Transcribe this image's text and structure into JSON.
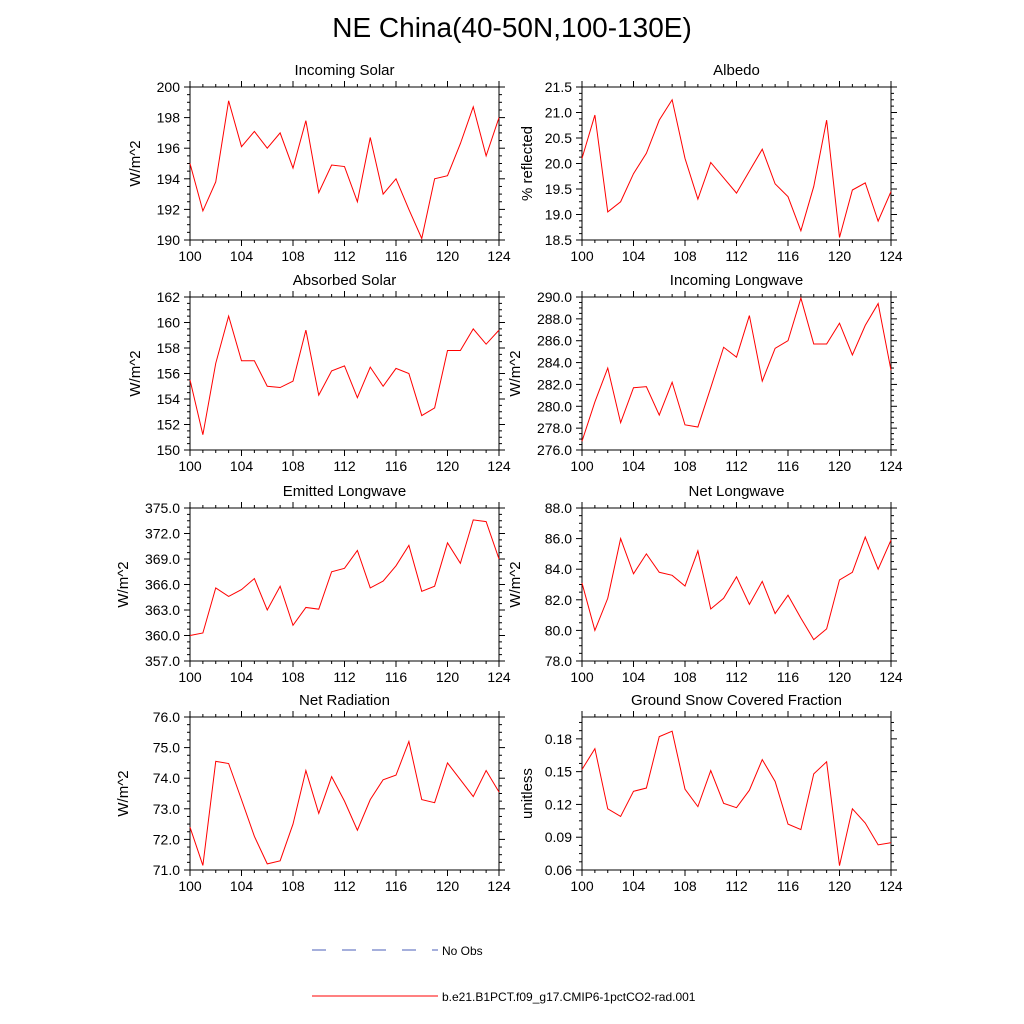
{
  "figure": {
    "title": "NE China(40-50N,100-130E)"
  },
  "legend": {
    "items": [
      {
        "label": "No Obs",
        "color": "#4b5fb8",
        "style": "dashed"
      },
      {
        "label": "b.e21.B1PCT.f09_g17.CMIP6-1pctCO2-rad.001",
        "color": "#ff0000",
        "style": "solid"
      }
    ]
  },
  "chart_data": [
    {
      "type": "line",
      "title": "Incoming Solar",
      "xlabel": "",
      "ylabel": "W/m^2",
      "xlim": [
        100,
        124
      ],
      "ylim": [
        190,
        200
      ],
      "xticks": [
        100,
        104,
        108,
        112,
        116,
        120,
        124
      ],
      "yticks": [
        190,
        192,
        194,
        196,
        198,
        200
      ],
      "ytick_labels": [
        "190",
        "192",
        "194",
        "196",
        "198",
        "200"
      ],
      "x": [
        100,
        101,
        102,
        103,
        104,
        105,
        106,
        107,
        108,
        109,
        110,
        111,
        112,
        113,
        114,
        115,
        116,
        117,
        118,
        119,
        120,
        121,
        122,
        123,
        124
      ],
      "series": [
        {
          "name": "b.e21.B1PCT.f09_g17.CMIP6-1pctCO2-rad.001",
          "color": "#ff0000",
          "values": [
            195.0,
            191.9,
            193.8,
            199.1,
            196.1,
            197.1,
            196.0,
            197.0,
            194.7,
            197.8,
            193.1,
            194.9,
            194.8,
            192.5,
            196.7,
            193.0,
            194.0,
            192.0,
            190.1,
            194.0,
            194.2,
            196.3,
            198.7,
            195.5,
            198.0
          ]
        }
      ]
    },
    {
      "type": "line",
      "title": "Albedo",
      "xlabel": "",
      "ylabel": "% reflected",
      "xlim": [
        100,
        124
      ],
      "ylim": [
        18.5,
        21.5
      ],
      "xticks": [
        100,
        104,
        108,
        112,
        116,
        120,
        124
      ],
      "yticks": [
        18.5,
        19.0,
        19.5,
        20.0,
        20.5,
        21.0,
        21.5
      ],
      "ytick_labels": [
        "18.5",
        "19.0",
        "19.5",
        "20.0",
        "20.5",
        "21.0",
        "21.5"
      ],
      "x": [
        100,
        101,
        102,
        103,
        104,
        105,
        106,
        107,
        108,
        109,
        110,
        111,
        112,
        113,
        114,
        115,
        116,
        117,
        118,
        119,
        120,
        121,
        122,
        123,
        124
      ],
      "series": [
        {
          "name": "b.e21.B1PCT.f09_g17.CMIP6-1pctCO2-rad.001",
          "color": "#ff0000",
          "values": [
            20.1,
            20.95,
            19.05,
            19.25,
            19.8,
            20.2,
            20.85,
            21.25,
            20.1,
            19.3,
            20.02,
            19.72,
            19.42,
            19.85,
            20.28,
            19.6,
            19.35,
            18.68,
            19.55,
            20.85,
            18.55,
            19.48,
            19.62,
            18.87,
            19.45
          ]
        }
      ]
    },
    {
      "type": "line",
      "title": "Absorbed Solar",
      "xlabel": "",
      "ylabel": "W/m^2",
      "xlim": [
        100,
        124
      ],
      "ylim": [
        150,
        162
      ],
      "xticks": [
        100,
        104,
        108,
        112,
        116,
        120,
        124
      ],
      "yticks": [
        150,
        152,
        154,
        156,
        158,
        160,
        162
      ],
      "ytick_labels": [
        "150",
        "152",
        "154",
        "156",
        "158",
        "160",
        "162"
      ],
      "x": [
        100,
        101,
        102,
        103,
        104,
        105,
        106,
        107,
        108,
        109,
        110,
        111,
        112,
        113,
        114,
        115,
        116,
        117,
        118,
        119,
        120,
        121,
        122,
        123,
        124
      ],
      "series": [
        {
          "name": "b.e21.B1PCT.f09_g17.CMIP6-1pctCO2-rad.001",
          "color": "#ff0000",
          "values": [
            155.5,
            151.2,
            156.8,
            160.5,
            157.0,
            157.0,
            155.0,
            154.9,
            155.4,
            159.4,
            154.3,
            156.2,
            156.6,
            154.1,
            156.5,
            155.0,
            156.4,
            156.0,
            152.7,
            153.3,
            157.8,
            157.8,
            159.5,
            158.3,
            159.4
          ]
        }
      ]
    },
    {
      "type": "line",
      "title": "Incoming Longwave",
      "xlabel": "",
      "ylabel": "W/m^2",
      "xlim": [
        100,
        124
      ],
      "ylim": [
        276,
        290
      ],
      "xticks": [
        100,
        104,
        108,
        112,
        116,
        120,
        124
      ],
      "yticks": [
        276,
        278,
        280,
        282,
        284,
        286,
        288,
        290
      ],
      "ytick_labels": [
        "276.0",
        "278.0",
        "280.0",
        "282.0",
        "284.0",
        "286.0",
        "288.0",
        "290.0"
      ],
      "x": [
        100,
        101,
        102,
        103,
        104,
        105,
        106,
        107,
        108,
        109,
        110,
        111,
        112,
        113,
        114,
        115,
        116,
        117,
        118,
        119,
        120,
        121,
        122,
        123,
        124
      ],
      "series": [
        {
          "name": "b.e21.B1PCT.f09_g17.CMIP6-1pctCO2-rad.001",
          "color": "#ff0000",
          "values": [
            276.8,
            280.4,
            283.5,
            278.5,
            281.7,
            281.8,
            279.2,
            282.2,
            278.3,
            278.1,
            281.7,
            285.4,
            284.5,
            288.3,
            282.3,
            285.3,
            286.0,
            289.9,
            285.7,
            285.7,
            287.6,
            284.7,
            287.4,
            289.4,
            283.3
          ]
        }
      ]
    },
    {
      "type": "line",
      "title": "Emitted Longwave",
      "xlabel": "",
      "ylabel": "W/m^2",
      "xlim": [
        100,
        124
      ],
      "ylim": [
        357,
        375
      ],
      "xticks": [
        100,
        104,
        108,
        112,
        116,
        120,
        124
      ],
      "yticks": [
        357,
        360,
        363,
        366,
        369,
        372,
        375
      ],
      "ytick_labels": [
        "357.0",
        "360.0",
        "363.0",
        "366.0",
        "369.0",
        "372.0",
        "375.0"
      ],
      "x": [
        100,
        101,
        102,
        103,
        104,
        105,
        106,
        107,
        108,
        109,
        110,
        111,
        112,
        113,
        114,
        115,
        116,
        117,
        118,
        119,
        120,
        121,
        122,
        123,
        124
      ],
      "series": [
        {
          "name": "b.e21.B1PCT.f09_g17.CMIP6-1pctCO2-rad.001",
          "color": "#ff0000",
          "values": [
            360.0,
            360.3,
            365.6,
            364.6,
            365.4,
            366.7,
            363.0,
            365.8,
            361.2,
            363.3,
            363.1,
            367.5,
            367.9,
            370.0,
            365.6,
            366.4,
            368.2,
            370.6,
            365.2,
            365.8,
            370.9,
            368.5,
            373.6,
            373.4,
            369.0
          ]
        }
      ]
    },
    {
      "type": "line",
      "title": "Net Longwave",
      "xlabel": "",
      "ylabel": "W/m^2",
      "xlim": [
        100,
        124
      ],
      "ylim": [
        78,
        88
      ],
      "xticks": [
        100,
        104,
        108,
        112,
        116,
        120,
        124
      ],
      "yticks": [
        78,
        80,
        82,
        84,
        86,
        88
      ],
      "ytick_labels": [
        "78.0",
        "80.0",
        "82.0",
        "84.0",
        "86.0",
        "88.0"
      ],
      "x": [
        100,
        101,
        102,
        103,
        104,
        105,
        106,
        107,
        108,
        109,
        110,
        111,
        112,
        113,
        114,
        115,
        116,
        117,
        118,
        119,
        120,
        121,
        122,
        123,
        124
      ],
      "series": [
        {
          "name": "b.e21.B1PCT.f09_g17.CMIP6-1pctCO2-rad.001",
          "color": "#ff0000",
          "values": [
            83.1,
            80.0,
            82.1,
            86.0,
            83.7,
            85.0,
            83.8,
            83.6,
            82.9,
            85.2,
            81.4,
            82.1,
            83.5,
            81.7,
            83.2,
            81.1,
            82.3,
            80.8,
            79.4,
            80.1,
            83.3,
            83.8,
            86.1,
            84.0,
            85.9
          ]
        }
      ]
    },
    {
      "type": "line",
      "title": "Net Radiation",
      "xlabel": "",
      "ylabel": "W/m^2",
      "xlim": [
        100,
        124
      ],
      "ylim": [
        71,
        76
      ],
      "xticks": [
        100,
        104,
        108,
        112,
        116,
        120,
        124
      ],
      "yticks": [
        71,
        72,
        73,
        74,
        75,
        76
      ],
      "ytick_labels": [
        "71.0",
        "72.0",
        "73.0",
        "74.0",
        "75.0",
        "76.0"
      ],
      "x": [
        100,
        101,
        102,
        103,
        104,
        105,
        106,
        107,
        108,
        109,
        110,
        111,
        112,
        113,
        114,
        115,
        116,
        117,
        118,
        119,
        120,
        121,
        122,
        123,
        124
      ],
      "series": [
        {
          "name": "b.e21.B1PCT.f09_g17.CMIP6-1pctCO2-rad.001",
          "color": "#ff0000",
          "values": [
            72.4,
            71.15,
            74.55,
            74.48,
            73.3,
            72.1,
            71.2,
            71.3,
            72.5,
            74.25,
            72.85,
            74.05,
            73.25,
            72.3,
            73.3,
            73.95,
            74.1,
            75.2,
            73.3,
            73.2,
            74.5,
            73.95,
            73.4,
            74.25,
            73.55
          ]
        }
      ]
    },
    {
      "type": "line",
      "title": "Ground Snow Covered Fraction",
      "xlabel": "",
      "ylabel": "unitless",
      "xlim": [
        100,
        124
      ],
      "ylim": [
        0.06,
        0.2
      ],
      "xticks": [
        100,
        104,
        108,
        112,
        116,
        120,
        124
      ],
      "yticks": [
        0.06,
        0.09,
        0.12,
        0.15,
        0.18
      ],
      "ytick_labels": [
        "0.06",
        "0.09",
        "0.12",
        "0.15",
        "0.18"
      ],
      "x": [
        100,
        101,
        102,
        103,
        104,
        105,
        106,
        107,
        108,
        109,
        110,
        111,
        112,
        113,
        114,
        115,
        116,
        117,
        118,
        119,
        120,
        121,
        122,
        123,
        124
      ],
      "series": [
        {
          "name": "b.e21.B1PCT.f09_g17.CMIP6-1pctCO2-rad.001",
          "color": "#ff0000",
          "values": [
            0.152,
            0.171,
            0.116,
            0.109,
            0.132,
            0.135,
            0.182,
            0.187,
            0.134,
            0.118,
            0.151,
            0.121,
            0.117,
            0.133,
            0.161,
            0.141,
            0.102,
            0.097,
            0.148,
            0.159,
            0.064,
            0.116,
            0.103,
            0.083,
            0.085
          ]
        }
      ]
    }
  ]
}
